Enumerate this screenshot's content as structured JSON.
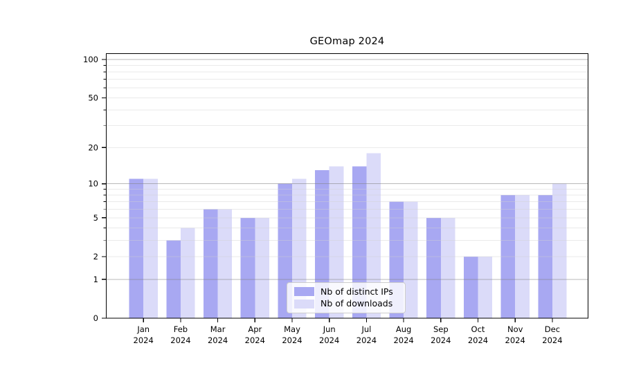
{
  "chart_data": {
    "type": "bar",
    "title": "GEOmap 2024",
    "categories": [
      "Jan",
      "Feb",
      "Mar",
      "Apr",
      "May",
      "Jun",
      "Jul",
      "Aug",
      "Sep",
      "Oct",
      "Nov",
      "Dec"
    ],
    "category_year_label": "2024",
    "series": [
      {
        "name": "Nb of distinct IPs",
        "color": "#a8a8f2",
        "values": [
          11,
          3,
          6,
          5,
          10,
          13,
          14,
          7,
          5,
          2,
          8,
          8
        ]
      },
      {
        "name": "Nb of downloads",
        "color": "#dbdbf9",
        "values": [
          11,
          4,
          6,
          5,
          11,
          14,
          18,
          7,
          5,
          2,
          8,
          10
        ]
      }
    ],
    "xlabel": "",
    "ylabel": "",
    "yscale": "log1p",
    "ylim": [
      0,
      112
    ],
    "yticks": [
      0,
      1,
      2,
      5,
      10,
      20,
      50,
      100
    ],
    "minor_yticks": [
      3,
      4,
      6,
      7,
      8,
      9,
      30,
      40,
      60,
      70,
      80,
      90
    ],
    "major_gridline_values": [
      1,
      10,
      100
    ],
    "grid": true,
    "legend_position": "lower center inside plot",
    "style": {
      "major_grid_color": "#808080",
      "minor_grid_color": "#d0d0d0",
      "axis_color": "#000000",
      "tick_label_color": "#000000",
      "background_color": "#ffffff"
    }
  }
}
